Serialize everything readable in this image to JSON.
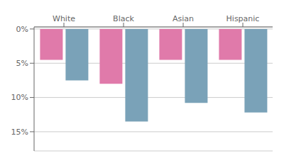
{
  "chart_data": {
    "type": "bar",
    "categories": [
      "White",
      "Black",
      "Asian",
      "Hispanic"
    ],
    "series": [
      {
        "color": "#e07aaa",
        "values": [
          4.5,
          8.0,
          4.5,
          4.5
        ]
      },
      {
        "color": "#7aa2b8",
        "values": [
          7.5,
          13.5,
          10.8,
          12.2
        ]
      }
    ],
    "ylim": [
      17.8,
      -0.3
    ],
    "yticks": [
      {
        "value": 0,
        "label": "0%"
      },
      {
        "value": 5,
        "label": "5%"
      },
      {
        "value": 10,
        "label": "10%"
      },
      {
        "value": 15,
        "label": "15%"
      }
    ],
    "grid": true
  }
}
